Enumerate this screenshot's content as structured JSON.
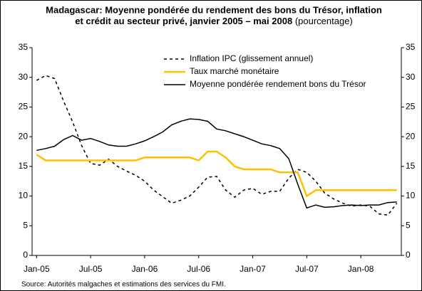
{
  "chart_data": {
    "type": "line",
    "title_lines": [
      "Madagascar: Moyenne pondérée du rendement des bons du Trésor, inflation",
      "et crédit au secteur privé, janvier 2005 – mai 2008"
    ],
    "subtitle": "(pourcentage)",
    "source": "Source: Autorités malgaches et estimations des services du FMI.",
    "categories": [
      "Jan-05",
      null,
      null,
      null,
      null,
      null,
      "Jul-05",
      null,
      null,
      null,
      null,
      null,
      "Jan-06",
      null,
      null,
      null,
      null,
      null,
      "Jul-06",
      null,
      null,
      null,
      null,
      null,
      "Jan-07",
      null,
      null,
      null,
      null,
      null,
      "Jul-07",
      null,
      null,
      null,
      null,
      null,
      "Jan-08",
      null,
      null,
      null,
      null
    ],
    "series": [
      {
        "name": "Inflation IPC (glissement annuel)",
        "color": "#000000",
        "dashed": true,
        "values": [
          29.5,
          30.3,
          29.8,
          26,
          22.5,
          18.5,
          15.5,
          15.2,
          16.2,
          15,
          14.2,
          13.5,
          12.5,
          11,
          9.9,
          8.8,
          9.3,
          10,
          11.5,
          13.2,
          13.3,
          11,
          9.8,
          11,
          11.3,
          10.3,
          10.8,
          10.8,
          13,
          14.5,
          14,
          12.5,
          10.5,
          9.5,
          8.8,
          8.3,
          8.5,
          8.3,
          7,
          6.8,
          8.8
        ]
      },
      {
        "name": "Taux marché monétaire",
        "color": "#ffc000",
        "dashed": false,
        "values": [
          17,
          16,
          16,
          16,
          16,
          16,
          16,
          16,
          16,
          16,
          16,
          16,
          16.5,
          16.5,
          16.5,
          16.5,
          16.5,
          16.5,
          16,
          17.5,
          17.5,
          16.5,
          15,
          14.5,
          14.5,
          14.5,
          14.5,
          14,
          14,
          14,
          10,
          11,
          11,
          11,
          11,
          11,
          11,
          11,
          11,
          11,
          11
        ]
      },
      {
        "name": "Moyenne pondérée rendement bons du Trésor",
        "color": "#000000",
        "dashed": false,
        "values": [
          17.7,
          18,
          18.4,
          19.5,
          20.2,
          19.4,
          19.7,
          19.2,
          18.6,
          18.4,
          18.4,
          18.8,
          19.3,
          20,
          20.8,
          22,
          22.6,
          23,
          22.9,
          22.6,
          21.3,
          21,
          20.5,
          20,
          19.4,
          18.8,
          18.5,
          18,
          16.3,
          12,
          8,
          8.5,
          8.1,
          8.2,
          8.4,
          8.5,
          8.4,
          8.5,
          8.5,
          8.9,
          9.0
        ]
      }
    ],
    "ylim": [
      0,
      35
    ],
    "yticks": [
      0,
      5,
      10,
      15,
      20,
      25,
      30,
      35
    ],
    "y2lim": [
      0,
      35
    ],
    "y2ticks": [
      0,
      5,
      10,
      15,
      20,
      25,
      30,
      35
    ],
    "grid": false,
    "legend": "top"
  }
}
